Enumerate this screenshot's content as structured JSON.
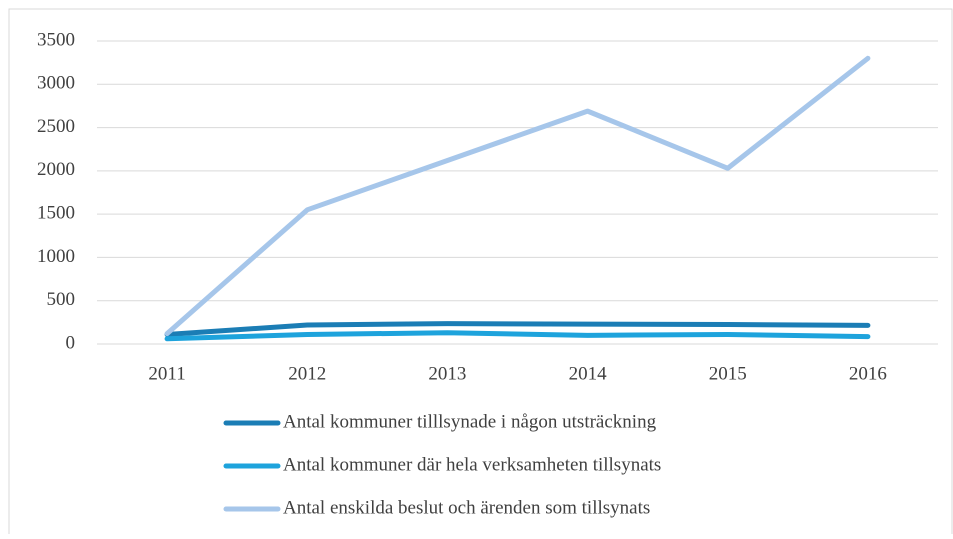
{
  "chart_data": {
    "type": "line",
    "categories": [
      "2011",
      "2012",
      "2013",
      "2014",
      "2015",
      "2016"
    ],
    "series": [
      {
        "name": "Antal kommuner tilllsynade i någon utsträckning",
        "color": "#1b7db5",
        "values": [
          110,
          220,
          235,
          230,
          225,
          215
        ]
      },
      {
        "name": "Antal kommuner där hela verksamheten tillsynats",
        "color": "#1ea3dc",
        "values": [
          60,
          110,
          130,
          100,
          110,
          85
        ]
      },
      {
        "name": "Antal enskilda beslut och ärenden som tillsynats",
        "color": "#a6c6ea",
        "values": [
          120,
          1550,
          2120,
          2690,
          2030,
          3300
        ]
      }
    ],
    "ylim": [
      0,
      3500
    ],
    "yticks": [
      0,
      500,
      1000,
      1500,
      2000,
      2500,
      3000,
      3500
    ],
    "grid": true,
    "legend": "bottom"
  }
}
